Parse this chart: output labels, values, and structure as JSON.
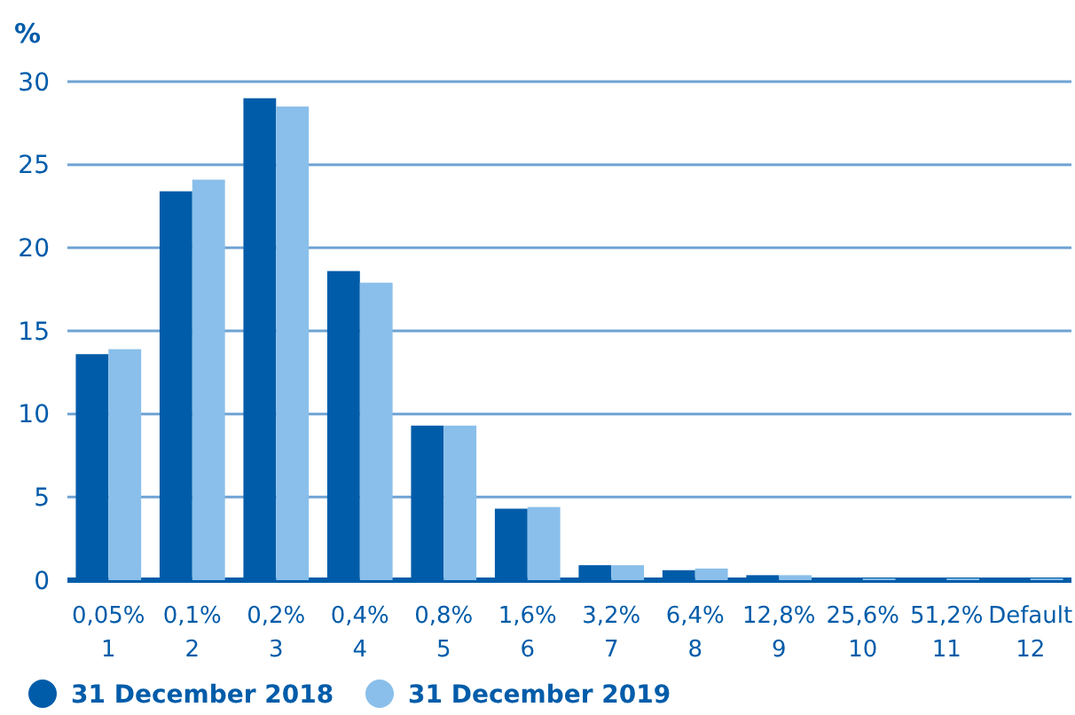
{
  "chart_data": {
    "type": "bar",
    "ylabel": "%",
    "categories": [
      "0,05%\n1",
      "0,1%\n2",
      "0,2%\n3",
      "0,4%\n4",
      "0,8%\n5",
      "1,6%\n6",
      "3,2%\n7",
      "6,4%\n8",
      "12,8%\n9",
      "25,6%\n10",
      "51,2%\n11",
      "Default\n12"
    ],
    "series": [
      {
        "name": "31 December 2018",
        "color": "#005ca9",
        "values": [
          13.6,
          23.4,
          29.0,
          18.6,
          9.3,
          4.3,
          0.9,
          0.6,
          0.3,
          0.1,
          0.1,
          0.1
        ]
      },
      {
        "name": "31 December 2019",
        "color": "#89bfea",
        "values": [
          13.9,
          24.1,
          28.5,
          17.9,
          9.3,
          4.4,
          0.9,
          0.7,
          0.3,
          0.1,
          0.1,
          0.1
        ]
      }
    ],
    "ylim": [
      0,
      30
    ],
    "yticks": [
      0,
      5,
      10,
      15,
      20,
      25,
      30
    ],
    "grid": "y",
    "legend": "bottom left"
  }
}
